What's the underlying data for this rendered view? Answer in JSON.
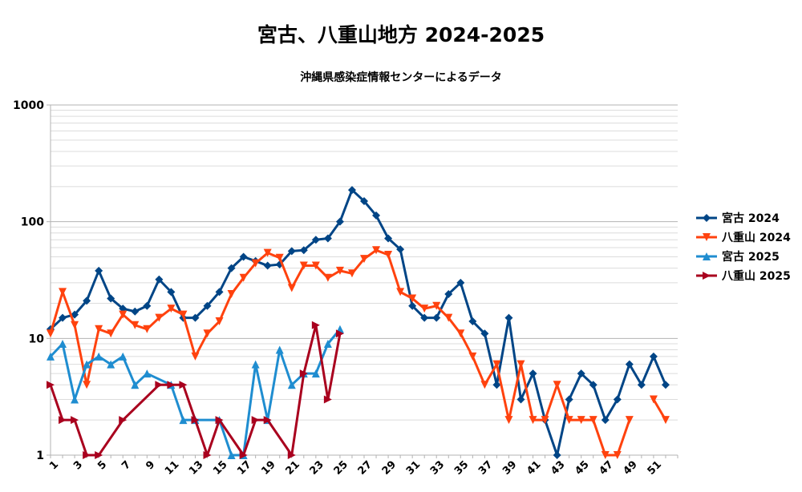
{
  "chart_data": {
    "type": "line",
    "title": "宮古、八重山地方 2024-2025",
    "subtitle": "沖縄県感染症情報センターによるデータ",
    "xlabel": "",
    "ylabel": "",
    "y_scale": "log",
    "ylim": [
      1,
      1000
    ],
    "y_ticks": [
      "1",
      "10",
      "100",
      "1000"
    ],
    "x_ticks": [
      "1",
      "3",
      "5",
      "7",
      "9",
      "11",
      "13",
      "15",
      "17",
      "19",
      "21",
      "23",
      "25",
      "27",
      "29",
      "31",
      "33",
      "35",
      "37",
      "39",
      "41",
      "43",
      "45",
      "47",
      "49",
      "51"
    ],
    "xlim": [
      1,
      53
    ],
    "grid": "horizontal major and minor (log)",
    "legend_position": "right",
    "series": [
      {
        "name": "宮古 2024",
        "color": "#004586",
        "marker": "diamond",
        "x": [
          1,
          2,
          3,
          4,
          5,
          6,
          7,
          8,
          9,
          10,
          11,
          12,
          13,
          14,
          15,
          16,
          17,
          18,
          19,
          20,
          21,
          22,
          23,
          24,
          25,
          26,
          27,
          28,
          29,
          30,
          31,
          32,
          33,
          34,
          35,
          36,
          37,
          38,
          39,
          40,
          41,
          42,
          43,
          44,
          45,
          46,
          47,
          48,
          49,
          50,
          51,
          52
        ],
        "values": [
          12,
          15,
          16,
          21,
          38,
          22,
          18,
          17,
          19,
          32,
          25,
          15,
          15,
          19,
          25,
          40,
          50,
          46,
          42,
          43,
          56,
          57,
          70,
          72,
          100,
          187,
          150,
          113,
          72,
          58,
          19,
          15,
          15,
          24,
          30,
          14,
          11,
          4,
          15,
          3,
          5,
          2,
          1,
          3,
          5,
          4,
          2,
          3,
          6,
          4,
          7,
          4
        ]
      },
      {
        "name": "八重山 2024",
        "color": "#ff420e",
        "marker": "triangle-down",
        "x": [
          1,
          2,
          3,
          4,
          5,
          6,
          7,
          8,
          9,
          10,
          11,
          12,
          13,
          14,
          15,
          16,
          17,
          18,
          19,
          20,
          21,
          22,
          23,
          24,
          25,
          26,
          27,
          28,
          29,
          30,
          31,
          32,
          33,
          34,
          35,
          36,
          37,
          38,
          39,
          40,
          41,
          42,
          43,
          44,
          45,
          46,
          47,
          48,
          49,
          50,
          51,
          52
        ],
        "values": [
          11,
          25,
          13,
          4,
          12,
          11,
          16,
          13,
          12,
          15,
          18,
          16,
          7,
          11,
          14,
          24,
          33,
          44,
          54,
          49,
          27,
          42,
          42,
          33,
          38,
          36,
          48,
          57,
          52,
          25,
          22,
          18,
          19,
          15,
          11,
          7,
          4,
          6,
          2,
          6,
          2,
          2,
          4,
          2,
          2,
          2,
          1,
          1,
          2,
          null,
          3,
          2
        ]
      },
      {
        "name": "宮古 2025",
        "color": "#1f8dd0",
        "marker": "triangle-up",
        "x": [
          1,
          2,
          3,
          4,
          5,
          6,
          7,
          8,
          9,
          11,
          12,
          13,
          15,
          16,
          17,
          18,
          19,
          20,
          21,
          22,
          23,
          24,
          25
        ],
        "values": [
          7,
          9,
          3,
          6,
          7,
          6,
          7,
          4,
          5,
          4,
          2,
          2,
          2,
          1,
          1,
          6,
          2,
          8,
          4,
          5,
          5,
          9,
          12
        ]
      },
      {
        "name": "八重山 2025",
        "color": "#a9001e",
        "marker": "triangle-right",
        "x": [
          1,
          2,
          3,
          4,
          5,
          7,
          10,
          11,
          12,
          13,
          14,
          15,
          17,
          18,
          19,
          21,
          22,
          23,
          24,
          25
        ],
        "values": [
          4,
          2,
          2,
          1,
          1,
          2,
          4,
          4,
          4,
          2,
          1,
          2,
          1,
          2,
          2,
          1,
          5,
          13,
          3,
          11
        ]
      }
    ]
  }
}
